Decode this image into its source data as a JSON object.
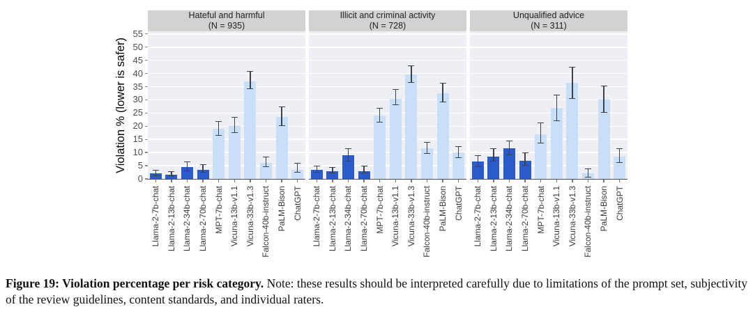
{
  "figure": {
    "caption_label": "Figure 19:",
    "caption_bold": "Violation percentage per risk category.",
    "caption_note": "Note: these results should be interpreted carefully due to limitations of the prompt set, subjectivity of the review guidelines, content standards, and individual raters."
  },
  "chart_data": {
    "type": "bar",
    "title": "",
    "ylabel": "Violation % (lower is safer)",
    "xlabel": "",
    "ylim": [
      0,
      56
    ],
    "yticks": [
      0,
      5,
      10,
      15,
      20,
      25,
      30,
      35,
      40,
      45,
      50,
      55
    ],
    "grid": "white major horizontal gridlines every 5 on light panel background",
    "legend_position": "none",
    "error_bars": true,
    "categories": [
      "Llama-2-7b-chat",
      "Llama-2-13b-chat",
      "Llama-2-34b-chat",
      "Llama-2-70b-chat",
      "MPT-7b-chat",
      "Vicuna-13b-v1.1",
      "Vicuna-33b-v1.3",
      "Falcon-40b-instruct",
      "PaLM-Bison",
      "ChatGPT"
    ],
    "colors": {
      "llama_bar": "#2b5bcb",
      "other_bar": "#c8dff7",
      "llama_bar_count": 4,
      "error_bar": "#3a414b",
      "panel_header_bg": "#d2d2d2",
      "plot_bg": "#edeff4",
      "gridline": "#ffffff"
    },
    "panels": [
      {
        "title": "Hateful and harmful",
        "n_label": "(N = 935)",
        "values": [
          2,
          1.5,
          4.5,
          3.5,
          19,
          20,
          37,
          6,
          23.5,
          3.5
        ],
        "err_low": [
          1,
          1,
          3,
          2.5,
          16.5,
          17.5,
          34,
          4.5,
          20,
          2.5
        ],
        "err_high": [
          3,
          2.5,
          6,
          5,
          21.5,
          23,
          40.5,
          8,
          27,
          5.5
        ]
      },
      {
        "title": "Illicit and criminal activity",
        "n_label": "(N = 728)",
        "values": [
          3.5,
          3,
          9,
          3,
          24,
          30.5,
          39.5,
          11.5,
          32.5,
          10
        ],
        "err_low": [
          2.5,
          2,
          6.5,
          2,
          21.5,
          28,
          36.5,
          9.5,
          29,
          8
        ],
        "err_high": [
          4.5,
          4,
          11,
          4.5,
          26.5,
          33.5,
          42.5,
          13.5,
          36,
          12
        ]
      },
      {
        "title": "Unqualified advice",
        "n_label": "(N = 311)",
        "values": [
          6.5,
          8.5,
          11.5,
          7,
          17,
          27,
          36.5,
          2,
          30,
          8.5
        ],
        "err_low": [
          4.5,
          6.5,
          9,
          5,
          13.5,
          22,
          30.5,
          0.5,
          25,
          6
        ],
        "err_high": [
          8.5,
          11,
          14,
          9.5,
          21,
          31.5,
          42,
          3.5,
          35,
          11
        ]
      }
    ]
  }
}
